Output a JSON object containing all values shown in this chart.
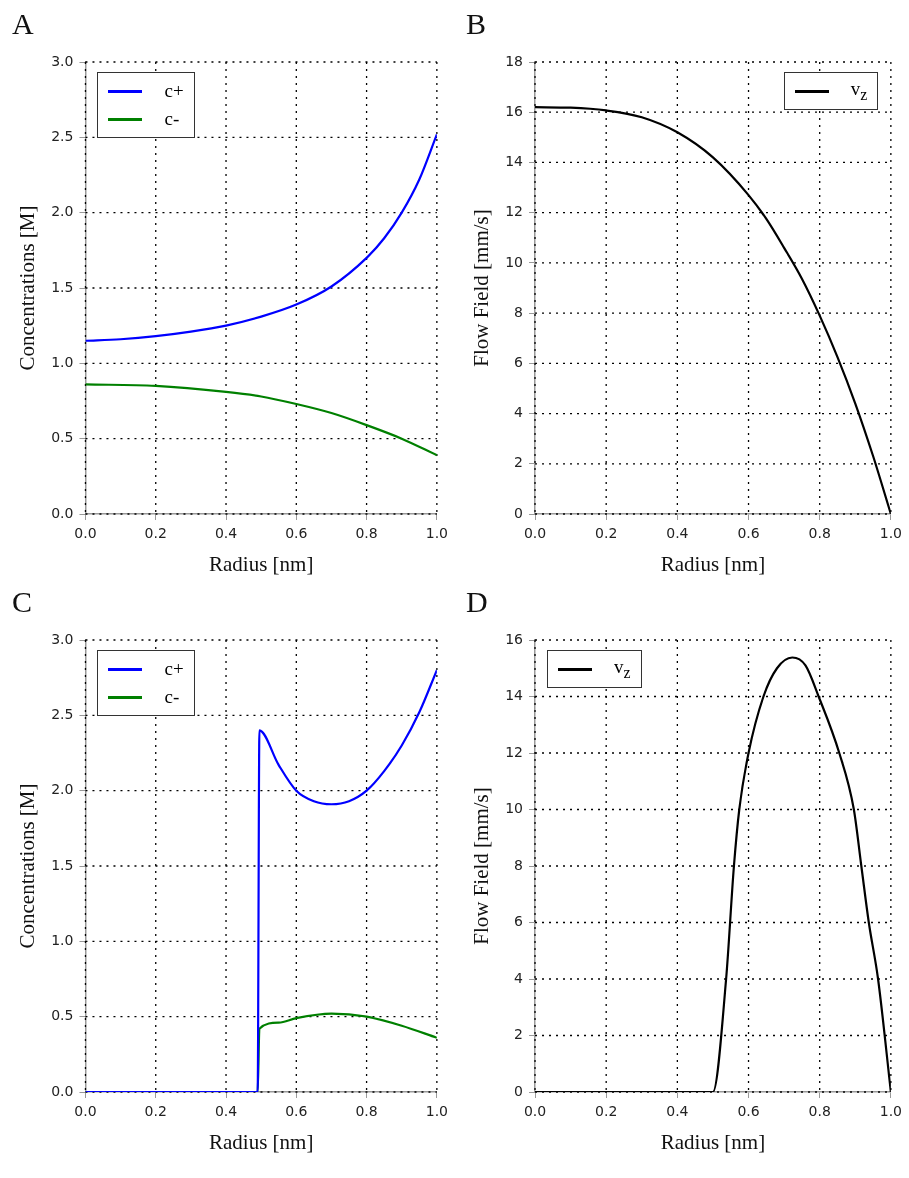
{
  "chart_data": [
    {
      "type": "line",
      "title": "A",
      "xlabel": "Radius [nm]",
      "ylabel": "Concentrations [M]",
      "xlim": [
        0,
        1
      ],
      "ylim": [
        0,
        3
      ],
      "xticks": [
        {
          "value": 0,
          "label": "0.0"
        },
        {
          "value": 0.2,
          "label": "0.2"
        },
        {
          "value": 0.4,
          "label": "0.4"
        },
        {
          "value": 0.6,
          "label": "0.6"
        },
        {
          "value": 0.8,
          "label": "0.8"
        },
        {
          "value": 1,
          "label": "1.0"
        }
      ],
      "yticks": [
        {
          "value": 0,
          "label": "0.0"
        },
        {
          "value": 0.5,
          "label": "0.5"
        },
        {
          "value": 1,
          "label": "1.0"
        },
        {
          "value": 1.5,
          "label": "1.5"
        },
        {
          "value": 2,
          "label": "2.0"
        },
        {
          "value": 2.5,
          "label": "2.5"
        },
        {
          "value": 3,
          "label": "3.0"
        }
      ],
      "grid": true,
      "legend": "top left",
      "series": [
        {
          "name": "c+",
          "color": "#0000ff",
          "x": [
            0,
            0.1,
            0.2,
            0.3,
            0.4,
            0.5,
            0.6,
            0.7,
            0.8,
            0.85,
            0.9,
            0.95,
            1.0
          ],
          "values": [
            1.15,
            1.16,
            1.18,
            1.21,
            1.25,
            1.31,
            1.39,
            1.51,
            1.7,
            1.83,
            2.0,
            2.22,
            2.52
          ]
        },
        {
          "name": "c-",
          "color": "#008000",
          "x": [
            0,
            0.2,
            0.4,
            0.5,
            0.6,
            0.7,
            0.8,
            0.9,
            1.0
          ],
          "values": [
            0.86,
            0.85,
            0.81,
            0.78,
            0.73,
            0.67,
            0.59,
            0.5,
            0.39
          ]
        }
      ]
    },
    {
      "type": "line",
      "title": "B",
      "xlabel": "Radius [nm]",
      "ylabel": "Flow Field [mm/s]",
      "xlim": [
        0,
        1
      ],
      "ylim": [
        0,
        18
      ],
      "xticks": [
        {
          "value": 0,
          "label": "0.0"
        },
        {
          "value": 0.2,
          "label": "0.2"
        },
        {
          "value": 0.4,
          "label": "0.4"
        },
        {
          "value": 0.6,
          "label": "0.6"
        },
        {
          "value": 0.8,
          "label": "0.8"
        },
        {
          "value": 1,
          "label": "1.0"
        }
      ],
      "yticks": [
        0,
        2,
        4,
        6,
        8,
        10,
        12,
        14,
        16,
        18
      ],
      "grid": true,
      "legend": "top right",
      "series": [
        {
          "name": "v$_{z}$",
          "color": "#000000",
          "x": [
            0,
            0.1,
            0.2,
            0.3,
            0.4,
            0.5,
            0.6,
            0.65,
            0.7,
            0.75,
            0.8,
            0.85,
            0.9,
            0.95,
            1.0
          ],
          "values": [
            16.2,
            16.18,
            16.07,
            15.8,
            15.2,
            14.2,
            12.7,
            11.75,
            10.6,
            9.37,
            7.9,
            6.25,
            4.4,
            2.31,
            0
          ]
        }
      ]
    },
    {
      "type": "line",
      "title": "C",
      "xlabel": "Radius [nm]",
      "ylabel": "Concentrations [M]",
      "xlim": [
        0,
        1
      ],
      "ylim": [
        0,
        3
      ],
      "xticks": [
        {
          "value": 0,
          "label": "0.0"
        },
        {
          "value": 0.2,
          "label": "0.2"
        },
        {
          "value": 0.4,
          "label": "0.4"
        },
        {
          "value": 0.6,
          "label": "0.6"
        },
        {
          "value": 0.8,
          "label": "0.8"
        },
        {
          "value": 1,
          "label": "1.0"
        }
      ],
      "yticks": [
        {
          "value": 0,
          "label": "0.0"
        },
        {
          "value": 0.5,
          "label": "0.5"
        },
        {
          "value": 1,
          "label": "1.0"
        },
        {
          "value": 1.5,
          "label": "1.5"
        },
        {
          "value": 2,
          "label": "2.0"
        },
        {
          "value": 2.5,
          "label": "2.5"
        },
        {
          "value": 3,
          "label": "3.0"
        }
      ],
      "grid": true,
      "legend": "top left",
      "series": [
        {
          "name": "c+",
          "color": "#0000ff",
          "x": [
            0,
            0.49,
            0.495,
            0.55,
            0.6,
            0.65,
            0.7,
            0.75,
            0.8,
            0.85,
            0.9,
            0.95,
            1.0
          ],
          "values": [
            0,
            0,
            2.4,
            2.17,
            2.0,
            1.93,
            1.91,
            1.93,
            2.0,
            2.13,
            2.3,
            2.52,
            2.8
          ]
        },
        {
          "name": "c-",
          "color": "#008000",
          "x": [
            0,
            0.49,
            0.495,
            0.55,
            0.6,
            0.7,
            0.8,
            0.9,
            1.0
          ],
          "values": [
            0,
            0,
            0.42,
            0.46,
            0.49,
            0.52,
            0.5,
            0.44,
            0.36
          ]
        }
      ]
    },
    {
      "type": "line",
      "title": "D",
      "xlabel": "Radius [nm]",
      "ylabel": "Flow Field [mm/s]",
      "xlim": [
        0,
        1
      ],
      "ylim": [
        0,
        16
      ],
      "xticks": [
        {
          "value": 0,
          "label": "0.0"
        },
        {
          "value": 0.2,
          "label": "0.2"
        },
        {
          "value": 0.4,
          "label": "0.4"
        },
        {
          "value": 0.6,
          "label": "0.6"
        },
        {
          "value": 0.8,
          "label": "0.8"
        },
        {
          "value": 1,
          "label": "1.0"
        }
      ],
      "yticks": [
        0,
        2,
        4,
        6,
        8,
        10,
        12,
        14,
        16
      ],
      "grid": true,
      "legend": "top left",
      "series": [
        {
          "name": "v$_{z}$",
          "color": "#000000",
          "x": [
            0,
            0.5,
            0.537,
            0.559,
            0.574,
            0.6,
            0.642,
            0.68,
            0.723,
            0.76,
            0.797,
            0.855,
            0.896,
            0.917,
            0.938,
            0.964,
            1.0
          ],
          "values": [
            0,
            0,
            4,
            8,
            10,
            12,
            14,
            15.0,
            15.38,
            15.1,
            14,
            12,
            10,
            8,
            6,
            4,
            0
          ]
        }
      ]
    }
  ]
}
